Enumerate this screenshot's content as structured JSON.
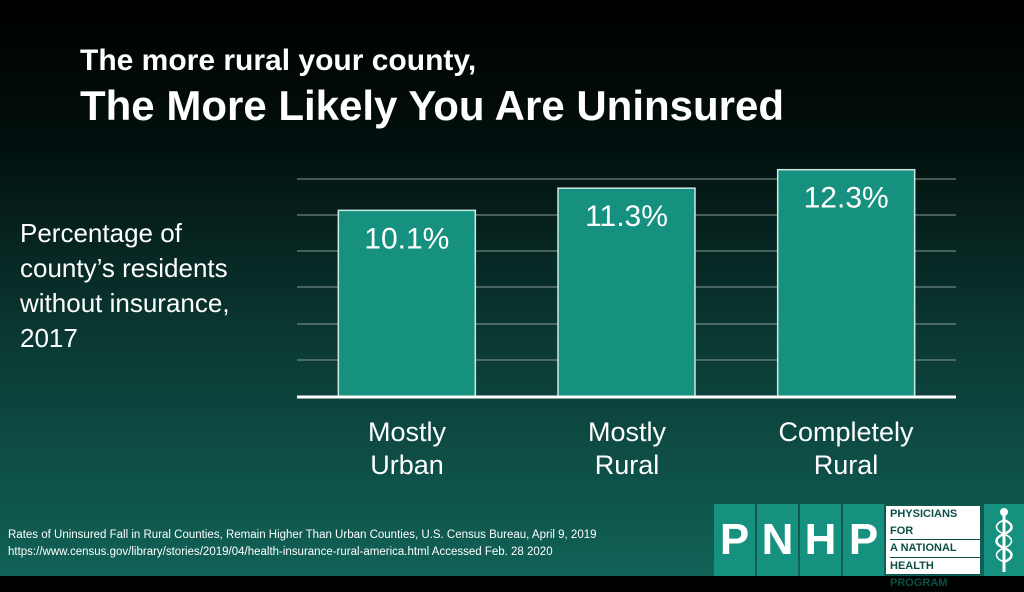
{
  "header": {
    "subtitle": "The more rural your county,",
    "title": "The More Likely You Are Uninsured"
  },
  "chart_data": {
    "type": "bar",
    "categories": [
      "Mostly Urban",
      "Mostly Rural",
      "Completely Rural"
    ],
    "category_lines": [
      [
        "Mostly",
        "Urban"
      ],
      [
        "Mostly",
        "Rural"
      ],
      [
        "Completely",
        "Rural"
      ]
    ],
    "values": [
      10.1,
      11.3,
      12.3
    ],
    "data_labels": [
      "10.1%",
      "11.3%",
      "12.3%"
    ],
    "ylabel_lines": [
      "Percentage of",
      "county’s residents",
      "without insurance,",
      "2017"
    ],
    "ylim": [
      0,
      12.5
    ],
    "grid": true,
    "bar_color": "#16917f",
    "bar_border_color": "#cfe9e4"
  },
  "source": {
    "line1": "Rates of Uninsured Fall in Rural Counties, Remain Higher Than Urban Counties, U.S. Census Bureau, April 9, 2019",
    "line2": "https://www.census.gov/library/stories/2019/04/health-insurance-rural-america.html  Accessed Feb. 28 2020"
  },
  "logo": {
    "letters": [
      "P",
      "N",
      "H",
      "P"
    ],
    "text_lines": [
      "PHYSICIANS FOR",
      "A NATIONAL",
      "HEALTH",
      "PROGRAM"
    ],
    "emblem": "caduceus-icon"
  }
}
